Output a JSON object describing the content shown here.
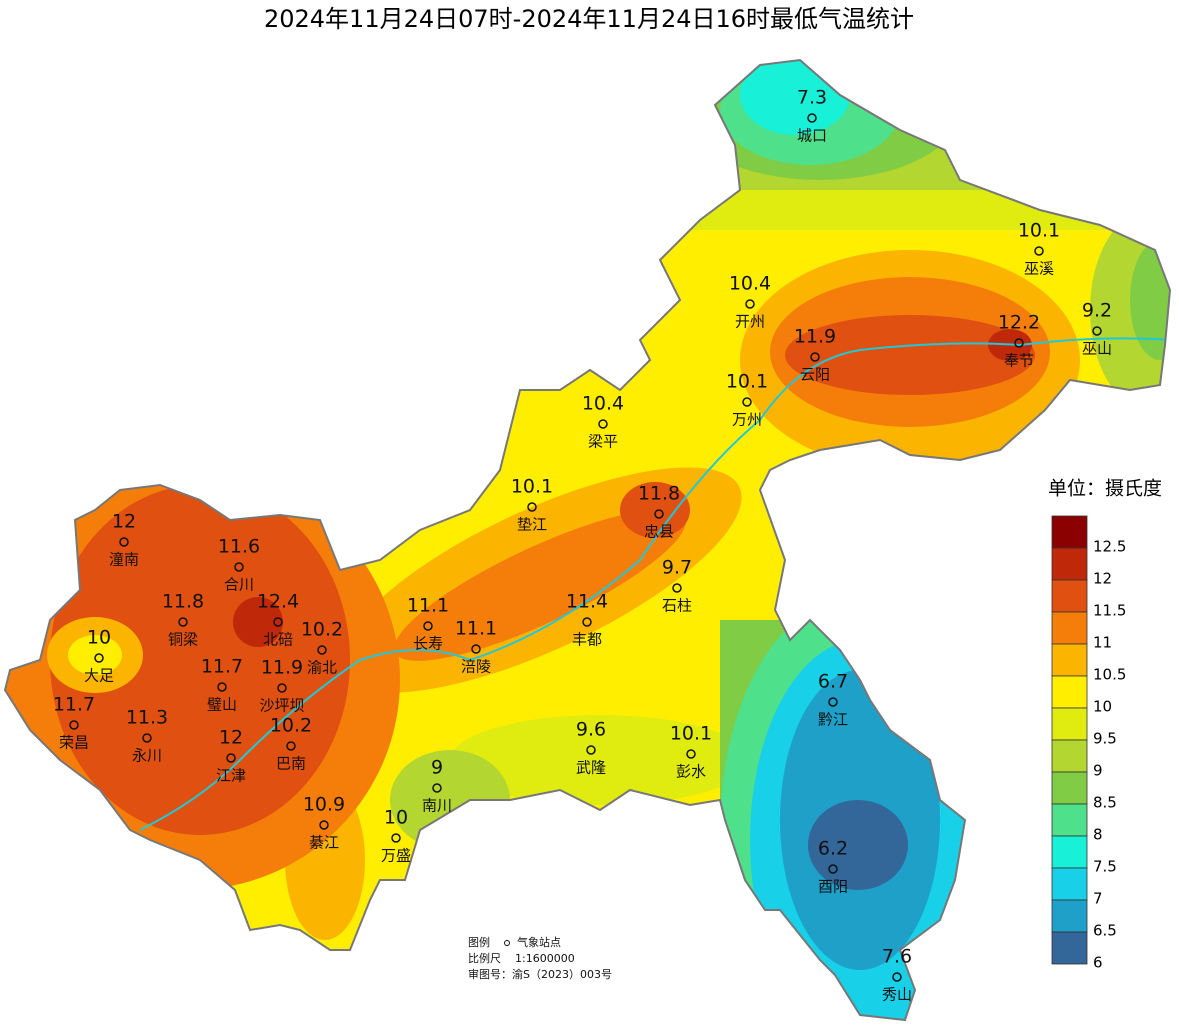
{
  "title": "2024年11月24日07时-2024年11月24日16时最低气温统计",
  "stations": [
    {
      "name": "城口",
      "value": 7.3
    },
    {
      "name": "巫溪",
      "value": 10.1
    },
    {
      "name": "开州",
      "value": 10.4
    },
    {
      "name": "巫山",
      "value": 9.2
    },
    {
      "name": "云阳",
      "value": 11.9
    },
    {
      "name": "奉节",
      "value": 12.2
    },
    {
      "name": "万州",
      "value": 10.1
    },
    {
      "name": "梁平",
      "value": 10.4
    },
    {
      "name": "垫江",
      "value": 10.1
    },
    {
      "name": "忠县",
      "value": 11.8
    },
    {
      "name": "潼南",
      "value": 12
    },
    {
      "name": "合川",
      "value": 11.6
    },
    {
      "name": "石柱",
      "value": 9.7
    },
    {
      "name": "铜梁",
      "value": 11.8
    },
    {
      "name": "北碚",
      "value": 12.4
    },
    {
      "name": "长寿",
      "value": 11.1
    },
    {
      "name": "丰都",
      "value": 11.4
    },
    {
      "name": "渝北",
      "value": 10.2
    },
    {
      "name": "大足",
      "value": 10
    },
    {
      "name": "涪陵",
      "value": 11.1
    },
    {
      "name": "璧山",
      "value": 11.7
    },
    {
      "name": "沙坪坝",
      "value": 11.9
    },
    {
      "name": "荣昌",
      "value": 11.7
    },
    {
      "name": "永川",
      "value": 11.3
    },
    {
      "name": "黔江",
      "value": 6.7
    },
    {
      "name": "巴南",
      "value": 10.2
    },
    {
      "name": "江津",
      "value": 12
    },
    {
      "name": "武隆",
      "value": 9.6
    },
    {
      "name": "彭水",
      "value": 10.1
    },
    {
      "name": "南川",
      "value": 9
    },
    {
      "name": "綦江",
      "value": 10.9
    },
    {
      "name": "万盛",
      "value": 10
    },
    {
      "name": "酉阳",
      "value": 6.2
    },
    {
      "name": "秀山",
      "value": 7.6
    }
  ],
  "legend": {
    "title": "单位：摄氏度",
    "ticks": [
      12.5,
      12,
      11.5,
      11,
      10.5,
      10,
      9.5,
      9,
      8.5,
      8,
      7.5,
      7,
      6.5,
      6
    ],
    "colors": [
      "#8b0000",
      "#c0280a",
      "#e05010",
      "#f57e0b",
      "#fbb500",
      "#ffee00",
      "#e0ec10",
      "#b4d630",
      "#80cc44",
      "#4ee08a",
      "#18f0d8",
      "#18d0e8",
      "#1ea0c8",
      "#336699"
    ]
  },
  "notes": {
    "legend_label": "图例",
    "station_label": "气象站点",
    "scale_label": "比例尺",
    "scale": "1:1600000",
    "approval": "审图号：渝S（2023）003号"
  }
}
